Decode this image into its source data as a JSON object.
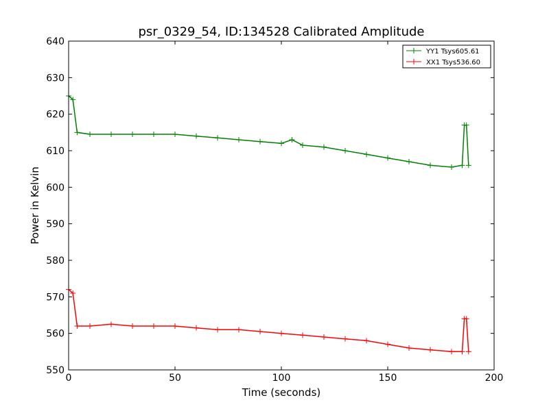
{
  "chart_data": {
    "type": "line",
    "title": "psr_0329_54, ID:134528 Calibrated Amplitude",
    "xlabel": "Time (seconds)",
    "ylabel": "Power in Kelvin",
    "xlim": [
      0,
      200
    ],
    "ylim": [
      550,
      640
    ],
    "x_ticks": [
      "0",
      "50",
      "100",
      "150",
      "200"
    ],
    "y_ticks": [
      "550",
      "560",
      "570",
      "580",
      "590",
      "600",
      "610",
      "620",
      "630",
      "640"
    ],
    "grid": false,
    "legend_position": "top-right",
    "marker": "plus",
    "series": [
      {
        "name": "YY1 Tsys605.61",
        "color": "#008000",
        "x": [
          0,
          2,
          4,
          10,
          20,
          30,
          40,
          50,
          60,
          70,
          80,
          90,
          100,
          105,
          110,
          120,
          130,
          140,
          150,
          160,
          170,
          180,
          185,
          186,
          187,
          188
        ],
        "y": [
          625,
          624,
          615,
          614.5,
          614.5,
          614.5,
          614.5,
          614.5,
          614,
          613.5,
          613,
          612.5,
          612,
          613,
          611.5,
          611,
          610,
          609,
          608,
          607,
          606,
          605.5,
          606,
          617,
          617,
          606
        ]
      },
      {
        "name": "XX1 Tsys536.60",
        "color": "#ff0000",
        "x": [
          0,
          2,
          4,
          10,
          20,
          30,
          40,
          50,
          60,
          70,
          80,
          90,
          100,
          110,
          120,
          130,
          140,
          150,
          160,
          170,
          180,
          185,
          186,
          187,
          188
        ],
        "y": [
          572,
          571,
          562,
          562,
          562.5,
          562,
          562,
          562,
          561.5,
          561,
          561,
          560.5,
          560,
          559.5,
          559,
          558.5,
          558,
          557,
          556,
          555.5,
          555,
          555,
          564,
          564,
          555
        ]
      }
    ]
  }
}
